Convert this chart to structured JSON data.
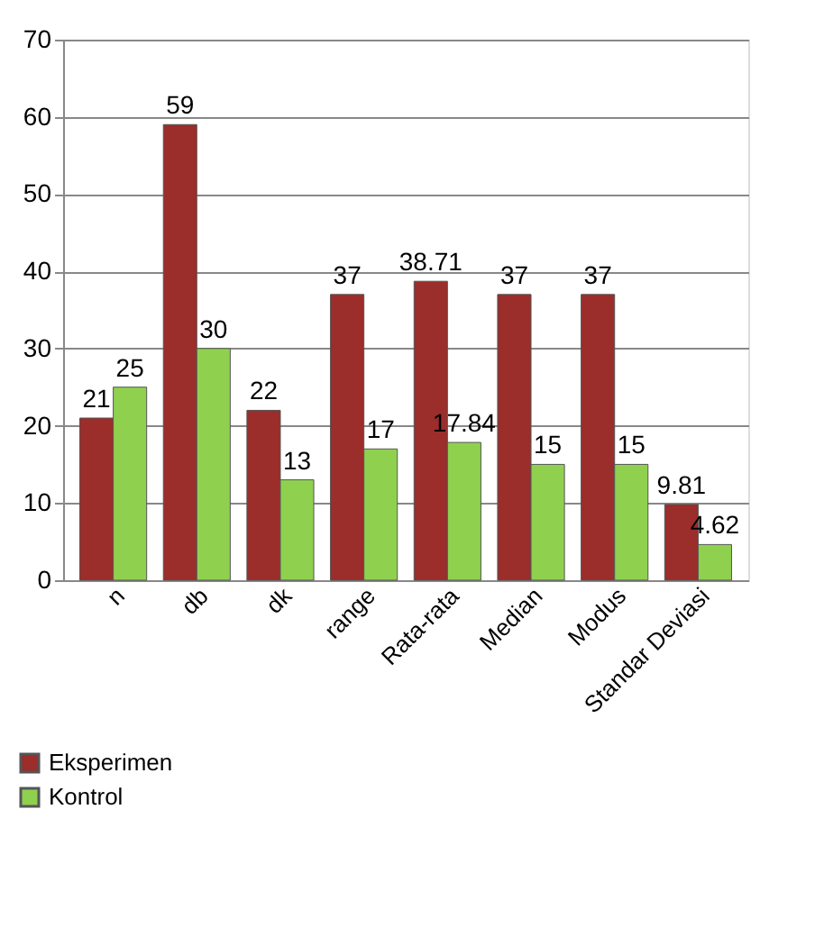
{
  "chart_data": {
    "type": "bar",
    "categories": [
      "n",
      "db",
      "dk",
      "range",
      "Rata-rata",
      "Median",
      "Modus",
      "Standar Deviasi"
    ],
    "series": [
      {
        "name": "Eksperimen",
        "color": "#9b2d2a",
        "values": [
          21,
          59,
          22,
          37,
          38.71,
          37,
          37,
          9.81
        ]
      },
      {
        "name": "Kontrol",
        "color": "#8fd14f",
        "values": [
          25,
          30,
          13,
          17,
          17.84,
          15,
          15,
          4.62
        ]
      }
    ],
    "ylim": [
      0,
      70
    ],
    "yticks": [
      0,
      10,
      20,
      30,
      40,
      50,
      60,
      70
    ],
    "grid": "y",
    "legend": "bottom left",
    "data_labels": true
  }
}
